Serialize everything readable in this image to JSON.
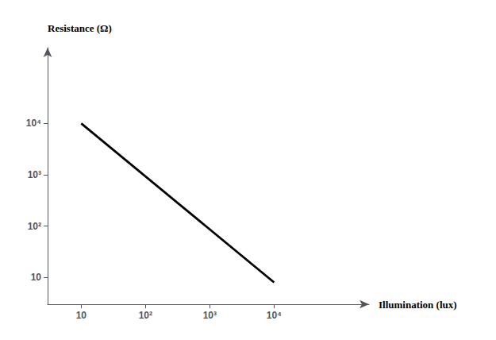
{
  "chart_data": {
    "type": "line",
    "xlabel": "Illumination (lux)",
    "ylabel": "Resistance (Ω)",
    "x": [
      10,
      10000
    ],
    "values": [
      10000,
      8
    ],
    "color": "#000000",
    "log": true,
    "grid": false,
    "xlim": [
      3,
      300000
    ],
    "ylim": [
      3,
      300000
    ],
    "xticks": [
      10,
      {
        "value": 100,
        "label": "10²"
      },
      {
        "value": 1000,
        "label": "10³"
      },
      {
        "value": 10000,
        "label": "10⁴"
      }
    ],
    "yticks": [
      10,
      {
        "value": 100,
        "label": "10²"
      },
      {
        "value": 1000,
        "label": "10³"
      },
      {
        "value": 10000,
        "label": "10⁴"
      }
    ]
  }
}
